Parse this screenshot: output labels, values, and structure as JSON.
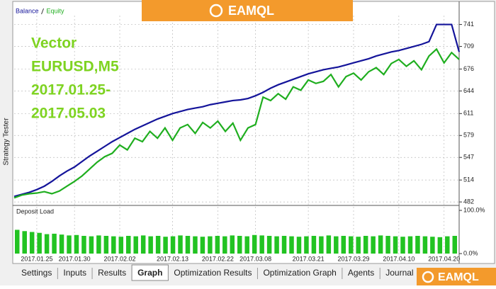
{
  "chart_data": [
    {
      "type": "line",
      "categories": [
        null,
        null,
        null,
        "2017.01.25",
        null,
        null,
        null,
        null,
        "2017.01.30",
        null,
        null,
        null,
        null,
        null,
        "2017.02.02",
        null,
        null,
        null,
        null,
        null,
        null,
        "2017.02.13",
        null,
        null,
        null,
        null,
        null,
        "2017.02.22",
        null,
        null,
        null,
        null,
        "2017.03.08",
        null,
        null,
        null,
        null,
        null,
        null,
        "2017.03.21",
        null,
        null,
        null,
        null,
        null,
        "2017.03.29",
        null,
        null,
        null,
        null,
        null,
        "2017.04.10",
        null,
        null,
        null,
        null,
        null,
        "2017.04.20",
        null,
        null
      ],
      "series": [
        {
          "name": "Balance",
          "color": "#14149a",
          "values": [
            490,
            493,
            496,
            500,
            505,
            512,
            520,
            527,
            533,
            541,
            549,
            556,
            563,
            570,
            576,
            582,
            588,
            593,
            598,
            603,
            607,
            611,
            614,
            617,
            619,
            621,
            624,
            626,
            628,
            630,
            631,
            633,
            637,
            642,
            648,
            653,
            657,
            661,
            665,
            669,
            672,
            675,
            677,
            679,
            682,
            685,
            688,
            691,
            695,
            698,
            701,
            703,
            706,
            709,
            712,
            716,
            741,
            741,
            741,
            701
          ]
        },
        {
          "name": "Equity",
          "color": "#1fae1f",
          "values": [
            488,
            492,
            494,
            495,
            497,
            494,
            498,
            505,
            512,
            520,
            530,
            540,
            548,
            553,
            565,
            558,
            575,
            570,
            585,
            575,
            590,
            572,
            590,
            595,
            582,
            598,
            590,
            600,
            585,
            597,
            572,
            590,
            595,
            635,
            630,
            640,
            632,
            650,
            645,
            660,
            655,
            658,
            668,
            650,
            665,
            670,
            660,
            672,
            678,
            668,
            684,
            690,
            680,
            688,
            675,
            695,
            705,
            685,
            700,
            690
          ]
        }
      ],
      "ylim": [
        479,
        754
      ],
      "yticks": [
        482,
        514,
        547,
        579,
        611,
        644,
        676,
        709,
        741
      ],
      "grid": true
    },
    {
      "type": "bar",
      "title": "Deposit Load",
      "color": "#22c322",
      "values": [
        55,
        52,
        50,
        48,
        45,
        46,
        44,
        42,
        43,
        41,
        40,
        42,
        41,
        40,
        39,
        41,
        40,
        42,
        40,
        41,
        39,
        40,
        42,
        41,
        40,
        39,
        40,
        41,
        40,
        42,
        41,
        40,
        43,
        42,
        41,
        40,
        41,
        40,
        39,
        40,
        41,
        40,
        42,
        40,
        41,
        40,
        39,
        41,
        40,
        42,
        41,
        40,
        39,
        40,
        41,
        40,
        39,
        38,
        40,
        41
      ],
      "ylim": [
        0,
        100
      ],
      "yticks": [
        {
          "value": 0,
          "label": "0.0%"
        },
        {
          "value": 100,
          "label": "100.0%"
        }
      ]
    }
  ],
  "overlay_text": [
    "Vector",
    "EURUSD,M5",
    "2017.01.25-",
    "2017.05.03"
  ],
  "logo": "EAMQL",
  "side_label": "Strategy Tester",
  "tabs": [
    "Settings",
    "Inputs",
    "Results",
    "Graph",
    "Optimization Results",
    "Optimization Graph",
    "Agents",
    "Journal"
  ],
  "active_tab": 3
}
